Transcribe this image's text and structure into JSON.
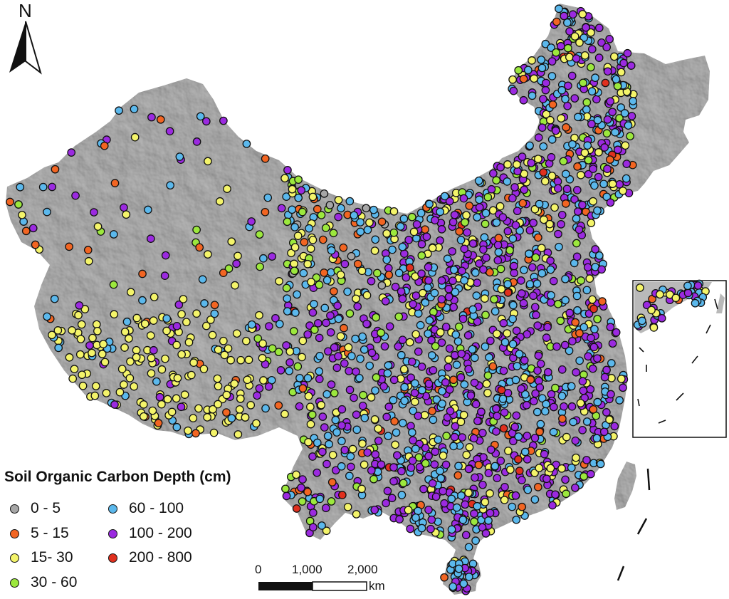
{
  "north": {
    "label": "N"
  },
  "legend": {
    "title": "Soil Organic Carbon Depth (cm)",
    "classes": [
      {
        "label": "0 - 5",
        "color": "#a6a6a6"
      },
      {
        "label": "5 - 15",
        "color": "#f26522"
      },
      {
        "label": "15- 30",
        "color": "#f4f46a"
      },
      {
        "label": "30 - 60",
        "color": "#9ce83d"
      },
      {
        "label": "60 - 100",
        "color": "#5bb8ec"
      },
      {
        "label": "100 - 200",
        "color": "#9b2ae0"
      },
      {
        "label": "200 - 800",
        "color": "#e0301e"
      }
    ]
  },
  "scale_bar": {
    "labels": [
      "0",
      "1,000",
      "2,000"
    ],
    "unit": "km"
  },
  "map": {
    "land_color": "#b9b9b9",
    "background_color": "#ffffff",
    "has_inset": true
  }
}
